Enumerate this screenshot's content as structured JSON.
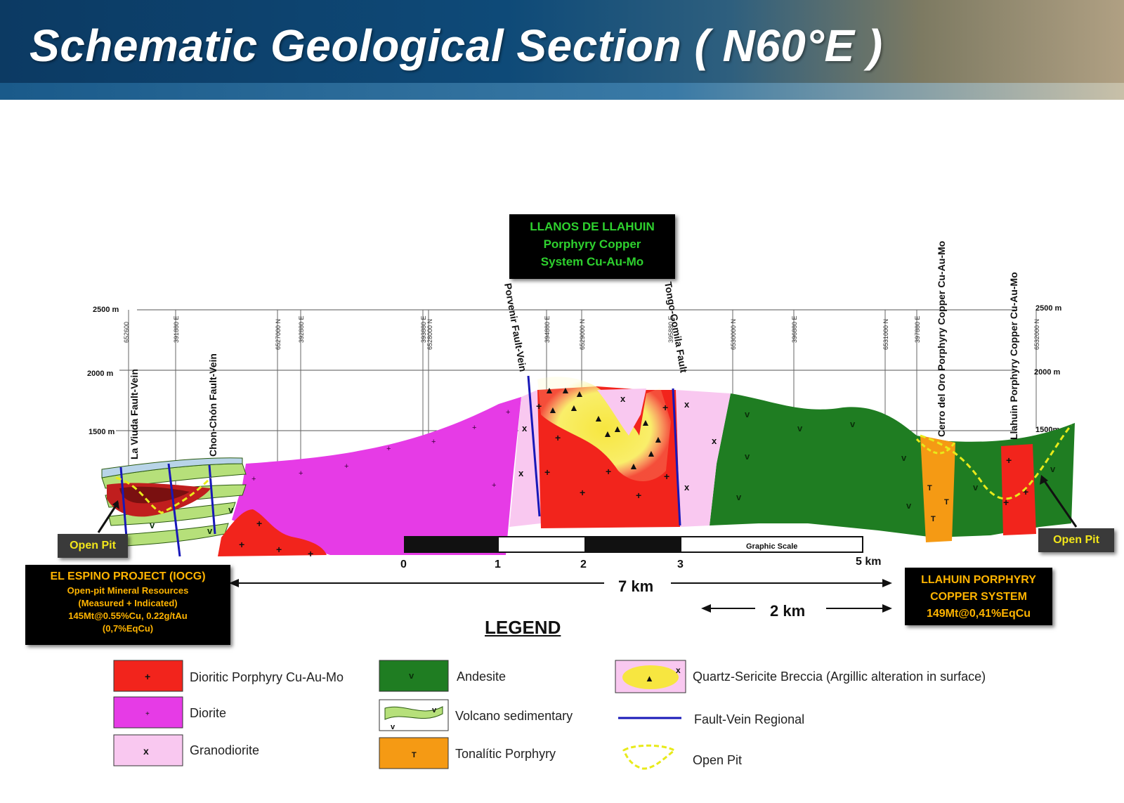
{
  "title": "Schematic Geological Section ( N60°E )",
  "elevations": {
    "e2500": "2500 m",
    "e2000": "2000 m",
    "e1500": "1500 m",
    "r2500": "2500 m",
    "r2000": "2000 m",
    "r1500": "1500m"
  },
  "faults": {
    "la_viuda": "La Viuda Fault-Vein",
    "chon_chon": "Chon-Chón Fault-Vein",
    "porvenir": "Porvenir Fault-Vein",
    "tongo": "Tongo-Gomila Fault",
    "cerro_del_oro": "Cerro del Oro Porphyry Copper Cu-Au-Mo",
    "llahuin": "Llahuin Porphyry Copper Cu-Au-Mo"
  },
  "grid_labels": [
    "652600",
    "391880 E",
    "6527000 N",
    "392880 E",
    "393880 E",
    "6528000 N",
    "394880 E",
    "6529000 N",
    "395880 E",
    "6530000 N",
    "396880 E",
    "6531000 N",
    "397880 E",
    "6532000 N"
  ],
  "llanos_box": {
    "line1": "LLANOS DE LLAHUIN",
    "line2": "Porphyry Copper",
    "line3": "System Cu-Au-Mo",
    "color": "#2ed12e"
  },
  "open_pit_left": "Open Pit",
  "open_pit_right": "Open Pit",
  "espino_box": {
    "title": "EL ESPINO PROJECT (IOCG)",
    "line1": "Open-pit Mineral Resources",
    "line2": "(Measured + Indicated)",
    "line3": "145Mt@0.55%Cu, 0.22g/tAu",
    "line4": "(0,7%EqCu)"
  },
  "llahuin_box": {
    "line1": "LLAHUIN PORPHYRY",
    "line2": "COPPER SYSTEM",
    "line3": "149Mt@0,41%EqCu"
  },
  "scale": {
    "label": "Graphic Scale",
    "t0": "0",
    "t1": "1",
    "t2": "2",
    "t3": "3",
    "t5": "5 km"
  },
  "dist_7km": "7 km",
  "dist_2km": "2 km",
  "legend": {
    "title": "LEGEND",
    "dioritic": "Dioritic Porphyry Cu-Au-Mo",
    "diorite": "Diorite",
    "granodiorite": "Granodiorite",
    "andesite": "Andesite",
    "volcano": "Volcano sedimentary",
    "tonalitic": "Tonalític Porphyry",
    "breccia": "Quartz-Sericite Breccia (Argillic alteration in surface)",
    "fault": "Fault-Vein Regional",
    "openpit": "Open Pit"
  },
  "colors": {
    "dioritic": "#f2241c",
    "diorite": "#e63be6",
    "granodiorite": "#f9c8f0",
    "andesite": "#1f7d22",
    "volcano": "#b6e07a",
    "tonalitic": "#f59a14",
    "breccia": "#f7e640",
    "fault": "#1818b8",
    "openpit": "#e8ea1a"
  }
}
